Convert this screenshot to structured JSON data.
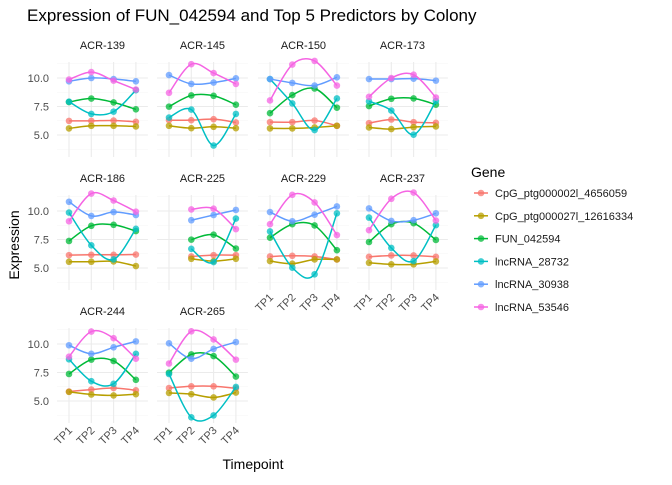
{
  "chart_data": {
    "type": "line",
    "title": "Expression of FUN_042594 and Top 5 Predictors by Colony",
    "xlabel": "Timepoint",
    "ylabel": "Expression",
    "categories": [
      "TP1",
      "TP2",
      "TP3",
      "TP4"
    ],
    "y_ticks": [
      "5.0",
      "7.5",
      "10.0"
    ],
    "y_tick_values": [
      5,
      7.5,
      10
    ],
    "grid": true,
    "legend": {
      "title": "Gene",
      "placement": "right"
    },
    "colors": [
      "#F8766D",
      "#B79F00",
      "#00BA38",
      "#00BFC4",
      "#619CFF",
      "#F564E3"
    ],
    "series_names": [
      "CpG_ptg000002l_4656059",
      "CpG_ptg000027l_12616334",
      "FUN_042594",
      "lncRNA_28732",
      "lncRNA_30938",
      "lncRNA_53546"
    ],
    "facets": [
      {
        "name": "ACR-139",
        "values": [
          [
            6.24,
            6.24,
            6.27,
            6.16
          ],
          [
            5.58,
            5.81,
            5.81,
            5.75
          ],
          [
            7.89,
            8.2,
            7.86,
            7.25
          ],
          [
            7.92,
            6.85,
            7.05,
            8.93
          ],
          [
            9.71,
            10.0,
            9.91,
            9.71
          ],
          [
            9.86,
            10.52,
            9.77,
            8.99
          ]
        ]
      },
      {
        "name": "ACR-145",
        "values": [
          [
            6.3,
            6.3,
            6.39,
            6.1
          ],
          [
            5.81,
            5.6,
            5.72,
            5.6
          ],
          [
            7.49,
            8.47,
            8.44,
            7.66
          ],
          [
            6.53,
            7.23,
            4.08,
            6.85
          ],
          [
            10.26,
            9.48,
            9.6,
            9.97
          ],
          [
            8.7,
            11.21,
            10.43,
            9.48
          ]
        ]
      },
      {
        "name": "ACR-150",
        "values": [
          [
            6.13,
            6.13,
            6.27,
            5.81
          ],
          [
            5.58,
            5.58,
            5.66,
            5.81
          ],
          [
            6.91,
            8.5,
            9.08,
            7.4
          ],
          [
            9.91,
            7.77,
            5.43,
            8.21
          ],
          [
            9.91,
            9.57,
            9.34,
            10.06
          ],
          [
            8.03,
            11.18,
            11.5,
            9.34
          ]
        ]
      },
      {
        "name": "ACR-173",
        "values": [
          [
            6.04,
            6.36,
            6.13,
            6.07
          ],
          [
            5.66,
            5.52,
            5.69,
            5.75
          ],
          [
            7.54,
            8.18,
            8.21,
            7.66
          ],
          [
            7.95,
            7.14,
            5.03,
            7.98
          ],
          [
            9.91,
            9.91,
            9.94,
            9.77
          ],
          [
            8.35,
            10.0,
            10.29,
            8.29
          ]
        ]
      },
      {
        "name": "ACR-186",
        "values": [
          [
            6.13,
            6.16,
            6.16,
            6.18
          ],
          [
            5.55,
            5.55,
            5.58,
            5.17
          ],
          [
            7.37,
            8.7,
            8.79,
            8.24
          ],
          [
            9.86,
            6.99,
            5.75,
            8.44
          ],
          [
            10.81,
            9.57,
            9.91,
            9.65
          ],
          [
            9.1,
            11.53,
            10.92,
            9.94
          ]
        ]
      },
      {
        "name": "ACR-225",
        "values": [
          [
            null,
            6.01,
            6.13,
            6.13
          ],
          [
            null,
            5.81,
            5.61,
            5.81
          ],
          [
            null,
            7.49,
            7.92,
            6.71
          ],
          [
            null,
            6.68,
            5.52,
            9.34
          ],
          [
            null,
            9.19,
            9.65,
            10.09
          ],
          [
            null,
            10.14,
            10.2,
            8.41
          ]
        ]
      },
      {
        "name": "ACR-229",
        "values": [
          [
            6.01,
            6.07,
            6.01,
            5.75
          ],
          [
            5.61,
            5.38,
            5.75,
            5.75
          ],
          [
            7.66,
            8.84,
            8.73,
            6.56
          ],
          [
            8.21,
            5.03,
            4.45,
            9.8
          ],
          [
            9.91,
            9.1,
            9.68,
            10.4
          ],
          [
            8.84,
            11.42,
            10.75,
            7.89
          ]
        ]
      },
      {
        "name": "ACR-237",
        "values": [
          [
            5.98,
            6.1,
            6.1,
            5.98
          ],
          [
            5.46,
            5.32,
            5.32,
            5.58
          ],
          [
            7.28,
            8.84,
            8.93,
            7.46
          ],
          [
            9.42,
            6.76,
            5.61,
            8.76
          ],
          [
            10.23,
            9.13,
            9.19,
            9.8
          ],
          [
            8.32,
            11.07,
            11.62,
            9.16
          ]
        ]
      },
      {
        "name": "ACR-244",
        "values": [
          [
            5.83,
            6.0,
            6.14,
            5.94
          ],
          [
            5.8,
            5.57,
            5.49,
            5.6
          ],
          [
            7.37,
            8.63,
            8.51,
            6.86
          ],
          [
            8.66,
            6.74,
            6.51,
            9.14
          ],
          [
            9.89,
            9.14,
            9.71,
            10.23
          ],
          [
            8.89,
            11.09,
            10.51,
            8.71
          ]
        ]
      },
      {
        "name": "ACR-265",
        "values": [
          [
            6.14,
            6.29,
            6.29,
            6.11
          ],
          [
            5.71,
            5.6,
            5.31,
            5.74
          ],
          [
            7.49,
            9.09,
            8.94,
            7.14
          ],
          [
            7.37,
            3.57,
            3.74,
            6.23
          ],
          [
            10.06,
            8.71,
            9.57,
            10.17
          ],
          [
            8.29,
            11.11,
            10.4,
            8.63
          ]
        ]
      }
    ]
  }
}
